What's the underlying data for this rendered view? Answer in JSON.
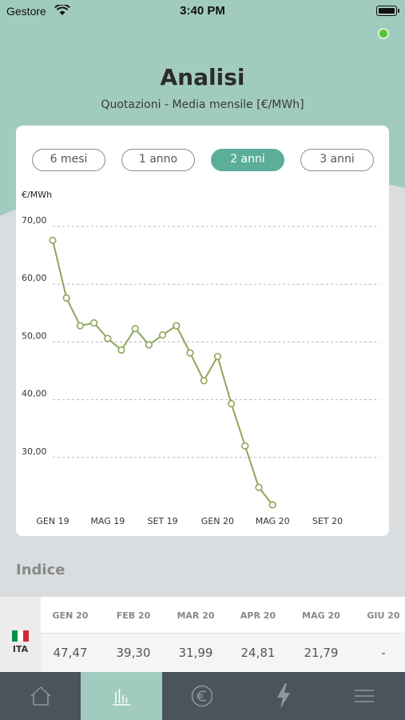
{
  "status_bar": {
    "carrier": "Gestore",
    "time": "3:40 PM",
    "battery_level": 1.0
  },
  "header": {
    "title": "Analisi",
    "subtitle": "Quotazioni - Media mensile [€/MWh]",
    "status_color": "#4fc63a"
  },
  "ranges": [
    {
      "label": "6 mesi",
      "active": false
    },
    {
      "label": "1 anno",
      "active": false
    },
    {
      "label": "2 anni",
      "active": true
    },
    {
      "label": "3 anni",
      "active": false
    }
  ],
  "chart_data": {
    "type": "line",
    "ylabel": "€/MWh",
    "ylim": [
      22,
      72
    ],
    "y_ticks": [
      "70,00",
      "60,00",
      "50,00",
      "40,00",
      "30,00"
    ],
    "x_tick_labels": [
      "GEN 19",
      "MAG 19",
      "SET 19",
      "GEN 20",
      "MAG 20",
      "SET 20"
    ],
    "grid": "horizontal-dashed",
    "series": [
      {
        "color": "#8fa65a",
        "x": [
          "2019-01",
          "2019-02",
          "2019-03",
          "2019-04",
          "2019-05",
          "2019-06",
          "2019-07",
          "2019-08",
          "2019-09",
          "2019-10",
          "2019-11",
          "2019-12",
          "2020-01",
          "2020-02",
          "2020-03",
          "2020-04",
          "2020-05"
        ],
        "values": [
          67.6,
          57.6,
          52.8,
          53.3,
          50.6,
          48.6,
          52.3,
          49.5,
          51.2,
          52.8,
          48.1,
          43.3,
          47.47,
          39.3,
          31.99,
          24.81,
          21.79
        ]
      }
    ]
  },
  "index": {
    "title": "Indice",
    "country": "ITA",
    "flag_colors": [
      "#009246",
      "#ffffff",
      "#ce2b37"
    ],
    "columns": [
      "GEN 20",
      "FEB 20",
      "MAR 20",
      "APR 20",
      "MAG 20",
      "GIU 20"
    ],
    "values": [
      "47,47",
      "39,30",
      "31,99",
      "24,81",
      "21,79",
      "-"
    ]
  },
  "tabs": [
    {
      "icon": "home-icon",
      "active": false
    },
    {
      "icon": "bar-chart-icon",
      "active": true
    },
    {
      "icon": "euro-icon",
      "active": false
    },
    {
      "icon": "lightning-icon",
      "active": false
    },
    {
      "icon": "menu-icon",
      "active": false
    }
  ]
}
